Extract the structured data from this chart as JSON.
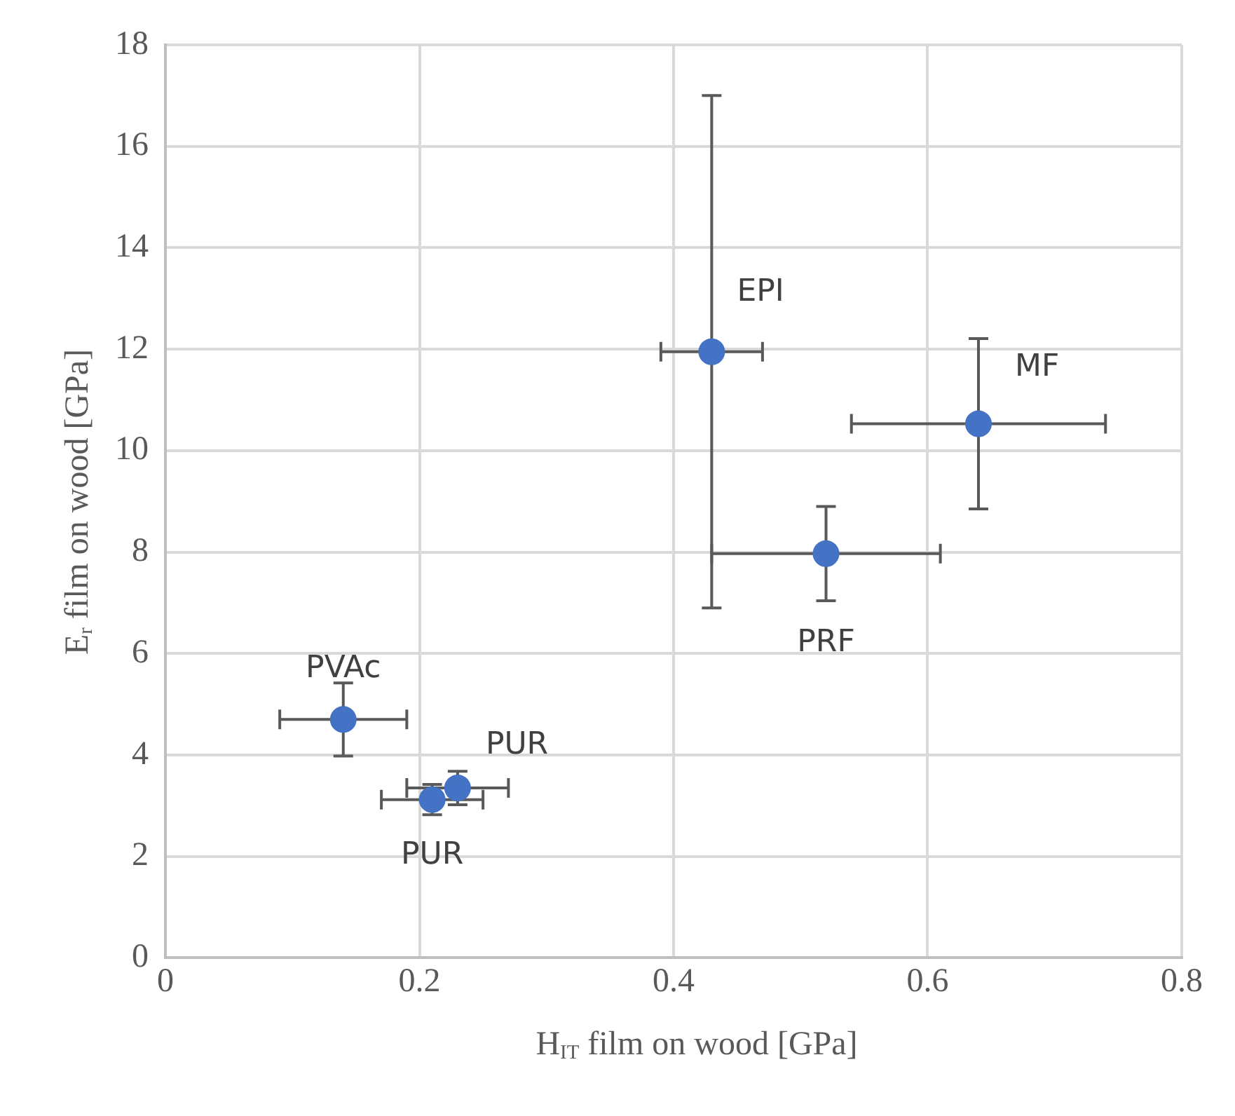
{
  "chart_data": {
    "type": "scatter",
    "xlabel": "H$_{IT}$ film on wood [GPa]",
    "ylabel": "E$_{r}$ film on wood [GPa]",
    "x": [
      0.14,
      0.23,
      0.21,
      0.43,
      0.64,
      0.52
    ],
    "values": [
      4.7,
      3.35,
      3.12,
      11.95,
      10.53,
      7.97
    ],
    "errors": [
      0.72,
      0.33,
      0.3,
      5.05,
      1.68,
      0.93
    ],
    "xerrors": [
      0.05,
      0.04,
      0.04,
      0.04,
      0.1,
      0.09
    ],
    "color": "#4472c4",
    "marker": "circle",
    "xlim": [
      0,
      0.8
    ],
    "xticks": [
      0,
      0.2,
      0.4,
      0.6,
      0.8
    ],
    "ylim": [
      0,
      18
    ],
    "yticks": [
      0,
      2,
      4,
      6,
      8,
      10,
      12,
      14,
      16,
      18
    ],
    "grid": true,
    "legend": false,
    "annotations": [
      {
        "text": "PVAc",
        "x": 0.14,
        "y": 4.7
      },
      {
        "text": "PUR",
        "x": 0.23,
        "y": 3.35
      },
      {
        "text": "PUR",
        "x": 0.21,
        "y": 3.12
      },
      {
        "text": "EPI",
        "x": 0.43,
        "y": 11.95
      },
      {
        "text": "MF",
        "x": 0.64,
        "y": 10.53
      },
      {
        "text": "PRF",
        "x": 0.52,
        "y": 7.97
      }
    ]
  }
}
